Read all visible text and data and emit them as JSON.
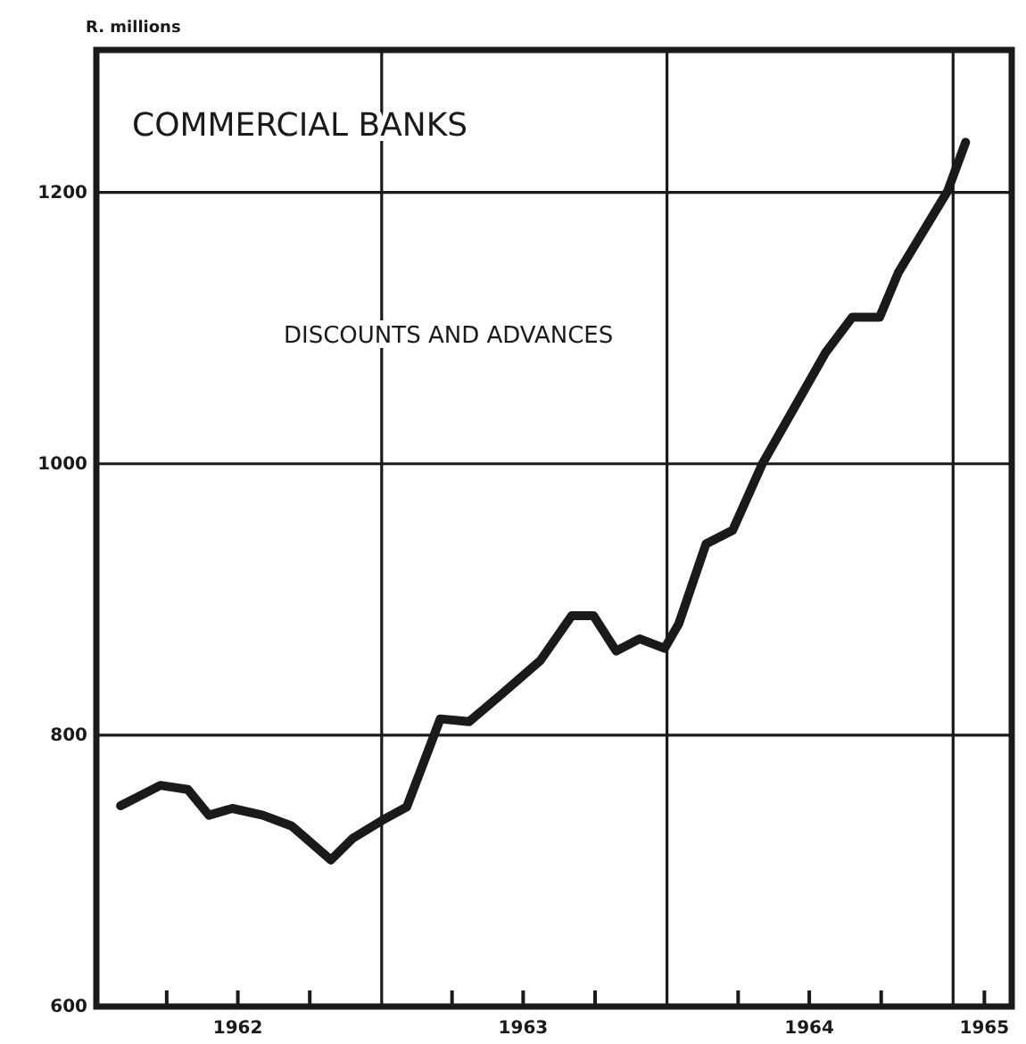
{
  "chart_data": {
    "type": "line",
    "title": "COMMERCIAL BANKS",
    "subtitle": "DISCOUNTS AND ADVANCES",
    "ylabel": "R. millions",
    "x": [
      "1962-02-01",
      "1962-03-24",
      "1962-04-28",
      "1962-05-25",
      "1962-06-24",
      "1962-08-02",
      "1962-09-08",
      "1962-10-28",
      "1962-11-25",
      "1963-01-01",
      "1963-02-02",
      "1963-03-17",
      "1963-04-23",
      "1963-06-01",
      "1963-07-23",
      "1963-09-01",
      "1963-09-29",
      "1963-10-28",
      "1963-11-27",
      "1963-12-29",
      "1964-01-16",
      "1964-02-20",
      "1964-03-25",
      "1964-05-02",
      "1964-07-22",
      "1964-08-25",
      "1964-09-29",
      "1964-10-23",
      "1964-12-25",
      "1965-01-17"
    ],
    "series": [
      {
        "color": "#1a1a1a",
        "values": [
          748,
          763,
          760,
          741,
          746,
          741,
          733,
          708,
          724,
          737,
          747,
          812,
          810,
          829,
          855,
          888,
          888,
          862,
          871,
          864,
          882,
          941,
          951,
          1000,
          1082,
          1108,
          1108,
          1141,
          1201,
          1237
        ]
      }
    ],
    "xlim": [
      "1962-01-01",
      "1965-03-17"
    ],
    "xticks": [
      {
        "value": "1962-04-01",
        "label": null
      },
      {
        "value": "1962-07-01",
        "label": "1962"
      },
      {
        "value": "1962-10-01",
        "label": null
      },
      {
        "value": "1963-04-01",
        "label": null
      },
      {
        "value": "1963-07-01",
        "label": "1963"
      },
      {
        "value": "1963-10-01",
        "label": null
      },
      {
        "value": "1964-04-01",
        "label": null
      },
      {
        "value": "1964-07-01",
        "label": "1964"
      },
      {
        "value": "1964-10-01",
        "label": null
      },
      {
        "value": "1965-02-10",
        "label": "1965"
      }
    ],
    "ylim": [
      600,
      1305
    ],
    "yticks": [
      600,
      800,
      1000,
      1200
    ],
    "grid": "y",
    "ref_lines": [
      {
        "axis": "x",
        "value": "1963-01-01",
        "color": "#1a1a1a"
      },
      {
        "axis": "x",
        "value": "1964-01-01",
        "color": "#1a1a1a"
      },
      {
        "axis": "x",
        "value": "1965-01-01",
        "color": "#1a1a1a"
      }
    ],
    "line_style": "solid",
    "marker": "none"
  }
}
